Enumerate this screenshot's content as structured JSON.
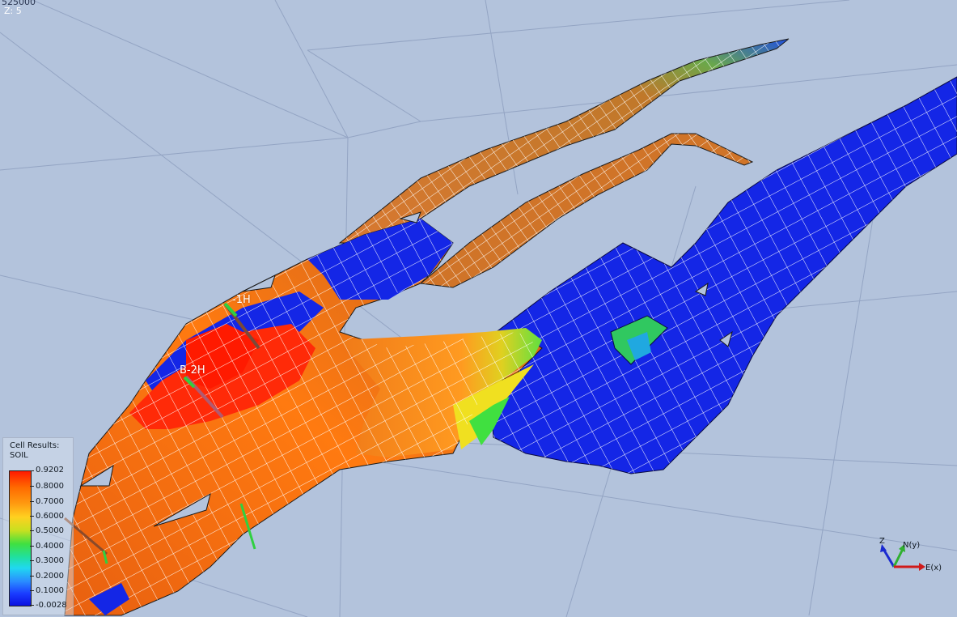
{
  "viewport": {
    "coordinate_readout": "525000",
    "z_readout": "Z: 5",
    "background_color": "#b3c3dc"
  },
  "legend": {
    "title": "Cell Results:",
    "subtitle": "SOIL",
    "max_label": "0.9202",
    "labels": [
      "0.8000",
      "0.7000",
      "0.6000",
      "0.5000",
      "0.4000",
      "0.3000",
      "0.2000",
      "0.1000"
    ],
    "min_label": "-0.0028"
  },
  "wells": [
    {
      "name": "B-2H"
    },
    {
      "name": "-1H"
    }
  ],
  "axis": {
    "z_label": "Z",
    "n_label": "N(y)",
    "e_label": "E(x)"
  },
  "colors": {
    "high_soil": "#ff1a00",
    "mid_soil": "#e8701a",
    "low_soil": "#1020e8",
    "grid_lines": "#ffffff"
  }
}
